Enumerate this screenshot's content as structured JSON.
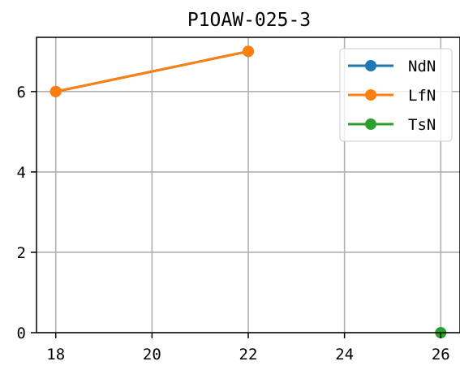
{
  "chart_data": {
    "type": "line",
    "title": "P1OAW-025-3",
    "xlabel": "",
    "ylabel": "",
    "xlim": [
      17.6,
      26.4
    ],
    "ylim": [
      0,
      7.35
    ],
    "xticks": [
      18,
      20,
      22,
      24,
      26
    ],
    "yticks": [
      0,
      2,
      4,
      6
    ],
    "grid": true,
    "legend_position": "top-right",
    "series": [
      {
        "name": "NdN",
        "color": "#1f77b4",
        "points": [
          [
            18,
            6
          ],
          [
            22,
            7
          ]
        ]
      },
      {
        "name": "LfN",
        "color": "#ff7f0e",
        "points": [
          [
            18,
            6
          ],
          [
            22,
            7
          ]
        ]
      },
      {
        "name": "TsN",
        "color": "#2ca02c",
        "points": [
          [
            26,
            0
          ]
        ]
      }
    ]
  }
}
